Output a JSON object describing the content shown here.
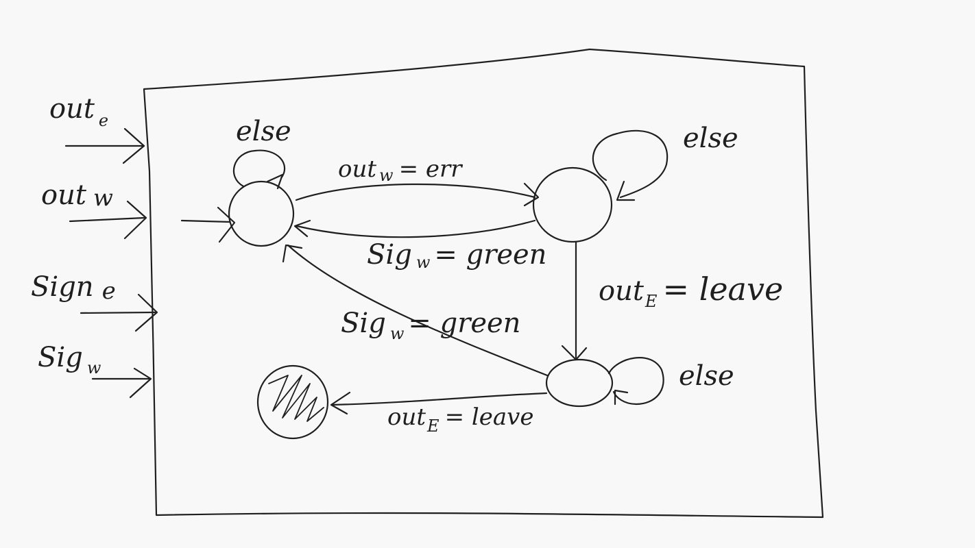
{
  "inputs": [
    {
      "main": "out",
      "sub": "e"
    },
    {
      "main": "out",
      "sub": "w"
    },
    {
      "main": "Sign",
      "sub": "e"
    },
    {
      "main": "Sig",
      "sub": "w"
    }
  ],
  "self_loops": [
    "else",
    "else",
    "else"
  ],
  "transitions": {
    "t1": {
      "main": "out",
      "sub": "w",
      "rest": "= err"
    },
    "t2": {
      "main": "Sig",
      "sub": "w",
      "rest": "= green"
    },
    "t3": {
      "main": "out",
      "sub": "E",
      "rest": "= leave"
    },
    "t4": {
      "main": "Sig",
      "sub": "w",
      "rest": "= green"
    },
    "t5": {
      "main": "out",
      "sub": "E",
      "rest": "= leave"
    }
  },
  "colors": {
    "ink": "#1f1f1f",
    "background": "#f8f8f8"
  }
}
